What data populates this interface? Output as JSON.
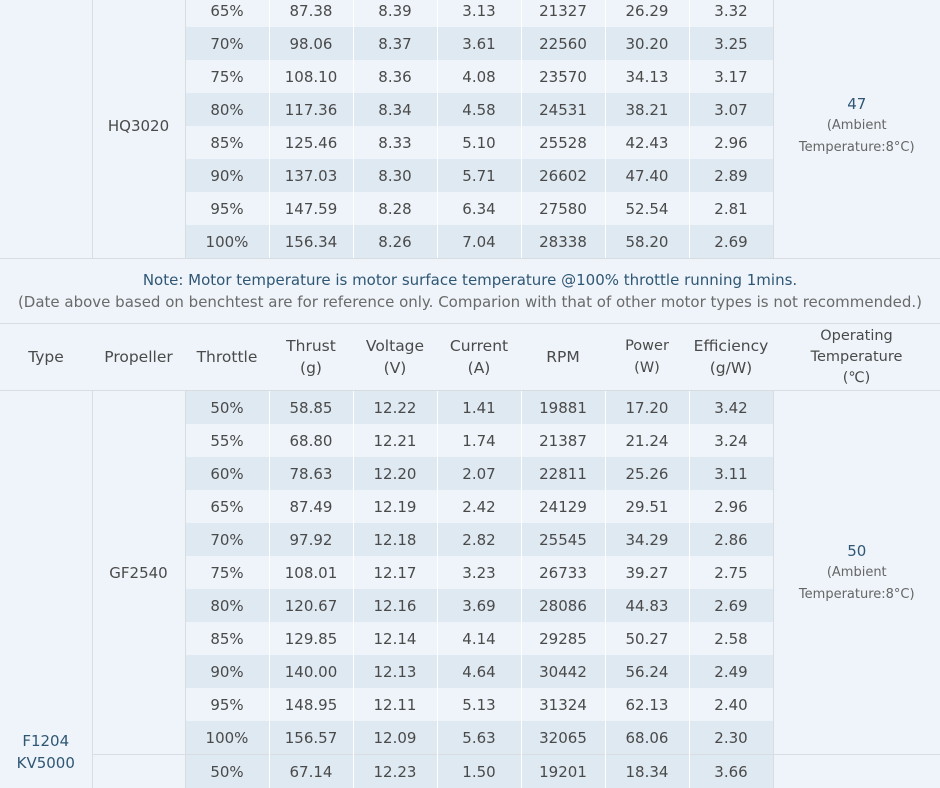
{
  "top_section": {
    "propeller": "HQ3020",
    "temperature": {
      "value": "47",
      "note_line1": "(Ambient",
      "note_line2": "Temperature:8°C)"
    },
    "rows": [
      [
        "65%",
        "87.38",
        "8.39",
        "3.13",
        "21327",
        "26.29",
        "3.32"
      ],
      [
        "70%",
        "98.06",
        "8.37",
        "3.61",
        "22560",
        "30.20",
        "3.25"
      ],
      [
        "75%",
        "108.10",
        "8.36",
        "4.08",
        "23570",
        "34.13",
        "3.17"
      ],
      [
        "80%",
        "117.36",
        "8.34",
        "4.58",
        "24531",
        "38.21",
        "3.07"
      ],
      [
        "85%",
        "125.46",
        "8.33",
        "5.10",
        "25528",
        "42.43",
        "2.96"
      ],
      [
        "90%",
        "137.03",
        "8.30",
        "5.71",
        "26602",
        "47.40",
        "2.89"
      ],
      [
        "95%",
        "147.59",
        "8.28",
        "6.34",
        "27580",
        "52.54",
        "2.81"
      ],
      [
        "100%",
        "156.34",
        "8.26",
        "7.04",
        "28338",
        "58.20",
        "2.69"
      ]
    ]
  },
  "note": {
    "main": "Note: Motor temperature is motor surface temperature @100% throttle running 1mins.",
    "sub": "(Date above based on benchtest are for reference only. Comparion with that of other motor types is not recommended.)"
  },
  "headers": {
    "type": "Type",
    "propeller": "Propeller",
    "throttle": "Throttle",
    "thrust": [
      "Thrust",
      "(g)"
    ],
    "voltage": [
      "Voltage",
      "(V)"
    ],
    "current": [
      "Current",
      "(A)"
    ],
    "rpm": "RPM",
    "power": [
      "Power",
      "(W)"
    ],
    "efficiency": [
      "Efficiency",
      "(g/W)"
    ],
    "temperature": [
      "Operating",
      "Temperature",
      "(℃)"
    ]
  },
  "bottom_section": {
    "type": [
      "F1204",
      "KV5000"
    ],
    "propeller": "GF2540",
    "temperature": {
      "value": "50",
      "note_line1": "(Ambient",
      "note_line2": "Temperature:8°C)"
    },
    "rows": [
      [
        "50%",
        "58.85",
        "12.22",
        "1.41",
        "19881",
        "17.20",
        "3.42"
      ],
      [
        "55%",
        "68.80",
        "12.21",
        "1.74",
        "21387",
        "21.24",
        "3.24"
      ],
      [
        "60%",
        "78.63",
        "12.20",
        "2.07",
        "22811",
        "25.26",
        "3.11"
      ],
      [
        "65%",
        "87.49",
        "12.19",
        "2.42",
        "24129",
        "29.51",
        "2.96"
      ],
      [
        "70%",
        "97.92",
        "12.18",
        "2.82",
        "25545",
        "34.29",
        "2.86"
      ],
      [
        "75%",
        "108.01",
        "12.17",
        "3.23",
        "26733",
        "39.27",
        "2.75"
      ],
      [
        "80%",
        "120.67",
        "12.16",
        "3.69",
        "28086",
        "44.83",
        "2.69"
      ],
      [
        "85%",
        "129.85",
        "12.14",
        "4.14",
        "29285",
        "50.27",
        "2.58"
      ],
      [
        "90%",
        "140.00",
        "12.13",
        "4.64",
        "30442",
        "56.24",
        "2.49"
      ],
      [
        "95%",
        "148.95",
        "12.11",
        "5.13",
        "31324",
        "62.13",
        "2.40"
      ],
      [
        "100%",
        "156.57",
        "12.09",
        "5.63",
        "32065",
        "68.06",
        "2.30"
      ]
    ],
    "next_row": [
      "50%",
      "67.14",
      "12.23",
      "1.50",
      "19201",
      "18.34",
      "3.66"
    ]
  }
}
